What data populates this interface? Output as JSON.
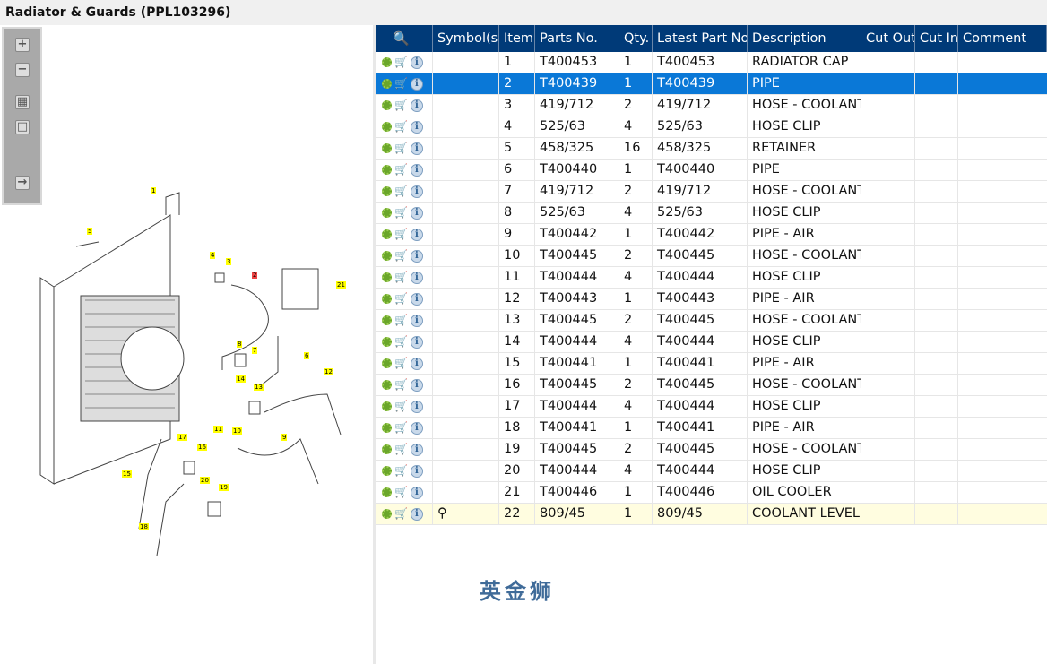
{
  "title": "Radiator & Guards (PPL103296)",
  "toolbar": [
    "zoom-in",
    "zoom-out",
    "fit-all",
    "fit-window",
    "expand-panel"
  ],
  "diagram": {
    "callouts": [
      "1",
      "5",
      "4",
      "3",
      "2",
      "21",
      "6",
      "8",
      "7",
      "14",
      "13",
      "12",
      "11",
      "10",
      "17",
      "16",
      "9",
      "15",
      "20",
      "19",
      "18"
    ],
    "highlighted": "2"
  },
  "grid": {
    "columns": [
      "Symbol(s)",
      "Item",
      "Parts No.",
      "Qty.",
      "Latest Part No.",
      "Description",
      "Cut Out",
      "Cut In",
      "Comment"
    ],
    "selected_item": "2",
    "rows": [
      {
        "item": "1",
        "part": "T400453",
        "qty": "1",
        "latest": "T400453",
        "desc": "RADIATOR CAP",
        "symbol": ""
      },
      {
        "item": "2",
        "part": "T400439",
        "qty": "1",
        "latest": "T400439",
        "desc": "PIPE",
        "symbol": ""
      },
      {
        "item": "3",
        "part": "419/712",
        "qty": "2",
        "latest": "419/712",
        "desc": "HOSE - COOLANT",
        "symbol": ""
      },
      {
        "item": "4",
        "part": "525/63",
        "qty": "4",
        "latest": "525/63",
        "desc": "HOSE CLIP",
        "symbol": ""
      },
      {
        "item": "5",
        "part": "458/325",
        "qty": "16",
        "latest": "458/325",
        "desc": "RETAINER",
        "symbol": ""
      },
      {
        "item": "6",
        "part": "T400440",
        "qty": "1",
        "latest": "T400440",
        "desc": "PIPE",
        "symbol": ""
      },
      {
        "item": "7",
        "part": "419/712",
        "qty": "2",
        "latest": "419/712",
        "desc": "HOSE - COOLANT",
        "symbol": ""
      },
      {
        "item": "8",
        "part": "525/63",
        "qty": "4",
        "latest": "525/63",
        "desc": "HOSE CLIP",
        "symbol": ""
      },
      {
        "item": "9",
        "part": "T400442",
        "qty": "1",
        "latest": "T400442",
        "desc": "PIPE - AIR",
        "symbol": ""
      },
      {
        "item": "10",
        "part": "T400445",
        "qty": "2",
        "latest": "T400445",
        "desc": "HOSE - COOLANT",
        "symbol": ""
      },
      {
        "item": "11",
        "part": "T400444",
        "qty": "4",
        "latest": "T400444",
        "desc": "HOSE CLIP",
        "symbol": ""
      },
      {
        "item": "12",
        "part": "T400443",
        "qty": "1",
        "latest": "T400443",
        "desc": "PIPE - AIR",
        "symbol": ""
      },
      {
        "item": "13",
        "part": "T400445",
        "qty": "2",
        "latest": "T400445",
        "desc": "HOSE - COOLANT",
        "symbol": ""
      },
      {
        "item": "14",
        "part": "T400444",
        "qty": "4",
        "latest": "T400444",
        "desc": "HOSE CLIP",
        "symbol": ""
      },
      {
        "item": "15",
        "part": "T400441",
        "qty": "1",
        "latest": "T400441",
        "desc": "PIPE - AIR",
        "symbol": ""
      },
      {
        "item": "16",
        "part": "T400445",
        "qty": "2",
        "latest": "T400445",
        "desc": "HOSE - COOLANT",
        "symbol": ""
      },
      {
        "item": "17",
        "part": "T400444",
        "qty": "4",
        "latest": "T400444",
        "desc": "HOSE CLIP",
        "symbol": ""
      },
      {
        "item": "18",
        "part": "T400441",
        "qty": "1",
        "latest": "T400441",
        "desc": "PIPE - AIR",
        "symbol": ""
      },
      {
        "item": "19",
        "part": "T400445",
        "qty": "2",
        "latest": "T400445",
        "desc": "HOSE - COOLANT",
        "symbol": ""
      },
      {
        "item": "20",
        "part": "T400444",
        "qty": "4",
        "latest": "T400444",
        "desc": "HOSE CLIP",
        "symbol": ""
      },
      {
        "item": "21",
        "part": "T400446",
        "qty": "1",
        "latest": "T400446",
        "desc": "OIL COOLER",
        "symbol": ""
      },
      {
        "item": "22",
        "part": "809/45",
        "qty": "1",
        "latest": "809/45",
        "desc": "COOLANT LEVEL S",
        "symbol": "⚲"
      }
    ]
  },
  "watermark": "英金狮"
}
